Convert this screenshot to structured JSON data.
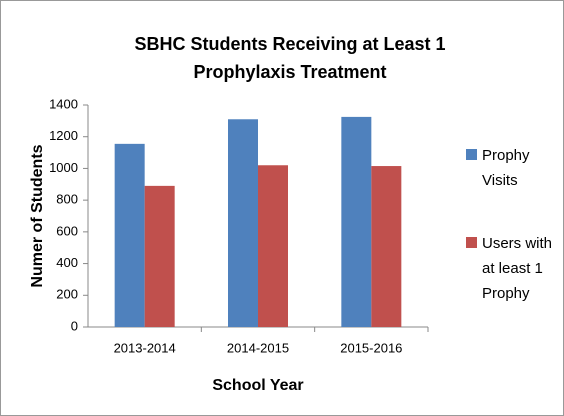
{
  "chart_data": {
    "type": "bar",
    "title": "SBHC Students Receiving at Least 1 Prophylaxis Treatment",
    "x_label": "School Year",
    "y_label": "Numer of Students",
    "categories": [
      "2013-2014",
      "2014-2015",
      "2015-2016"
    ],
    "series": [
      {
        "name": "Prophy Visits",
        "color": "#4f81bd",
        "values": [
          1155,
          1310,
          1325
        ]
      },
      {
        "name": "Users with at least 1 Prophy",
        "color": "#c0504d",
        "values": [
          890,
          1020,
          1015
        ]
      }
    ],
    "ylim": [
      0,
      1400
    ],
    "yticks": [
      0,
      200,
      400,
      600,
      800,
      1000,
      1200,
      1400
    ],
    "grid": false,
    "legend": "right"
  }
}
